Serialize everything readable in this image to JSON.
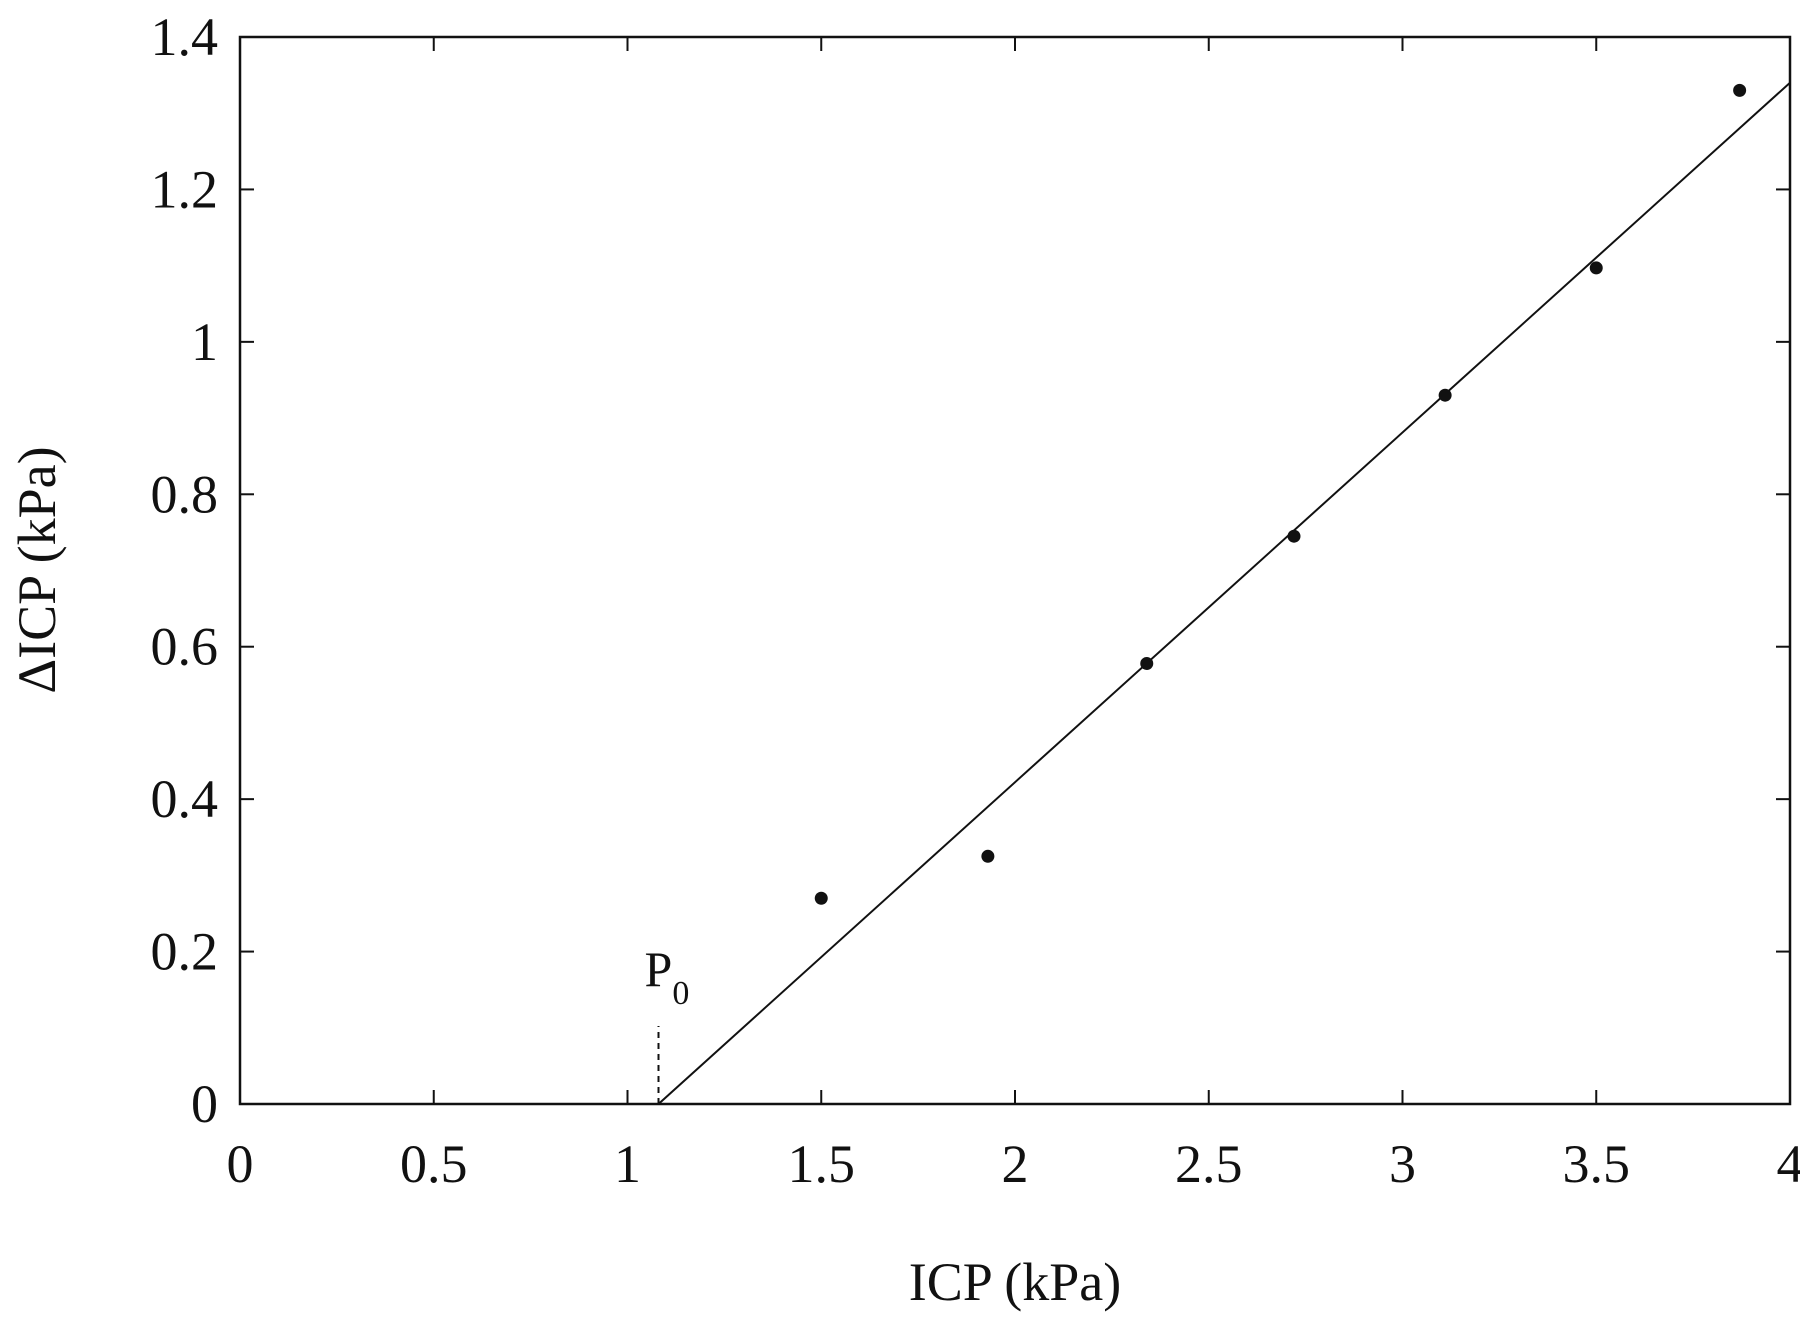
{
  "chart_data": {
    "type": "scatter",
    "xlabel": "ICP (kPa)",
    "ylabel": "ΔICP (kPa)",
    "xlim": [
      0,
      4
    ],
    "ylim": [
      0,
      1.4
    ],
    "x_ticks": [
      "0",
      "0.5",
      "1",
      "1.5",
      "2",
      "2.5",
      "3",
      "3.5",
      "4"
    ],
    "y_ticks": [
      "0",
      "0.2",
      "0.4",
      "0.6",
      "0.8",
      "1",
      "1.2",
      "1.4"
    ],
    "grid": false,
    "series": [
      {
        "type": "scatter",
        "points": [
          {
            "x": 1.5,
            "y": 0.27
          },
          {
            "x": 1.93,
            "y": 0.325
          },
          {
            "x": 2.34,
            "y": 0.578
          },
          {
            "x": 2.72,
            "y": 0.745
          },
          {
            "x": 3.11,
            "y": 0.93
          },
          {
            "x": 3.5,
            "y": 1.097
          },
          {
            "x": 3.87,
            "y": 1.33
          }
        ]
      },
      {
        "type": "line",
        "points": [
          {
            "x": 1.08,
            "y": 0.0
          },
          {
            "x": 4.0,
            "y": 1.34
          }
        ]
      }
    ],
    "annotation": {
      "label": "P",
      "subscript": "0",
      "x": 1.08
    }
  }
}
